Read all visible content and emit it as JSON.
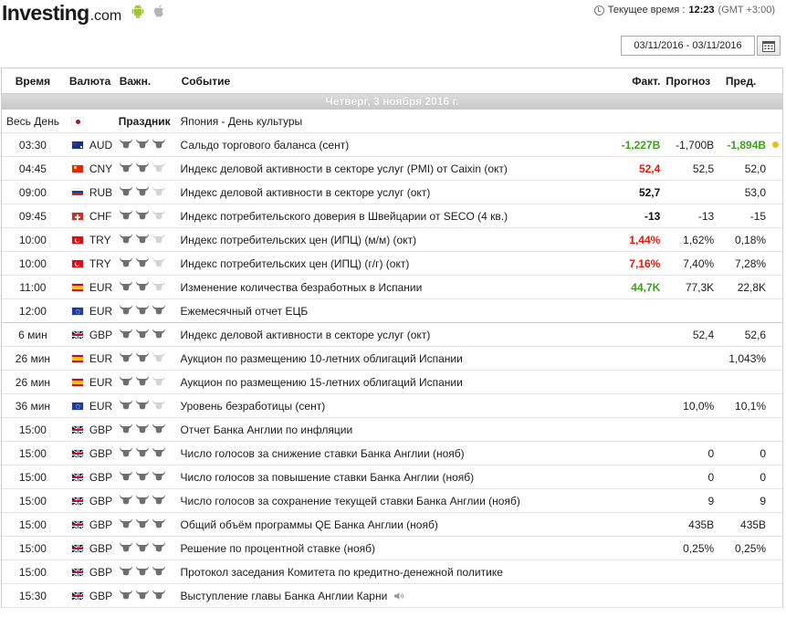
{
  "header": {
    "logo_text": "Investing",
    "logo_suffix": ".com",
    "current_time_label": "Текущее время :",
    "current_time": "12:23",
    "timezone": "(GMT +3:00)",
    "date_range": "03/11/2016 - 03/11/2016"
  },
  "table": {
    "columns": {
      "time": "Время",
      "currency": "Валюта",
      "importance": "Важн.",
      "event": "Событие",
      "actual": "Факт.",
      "forecast": "Прогноз",
      "previous": "Пред."
    },
    "day_header": "Четверг, 3 ноября 2016 г.",
    "holiday": {
      "time": "Весь День",
      "flag": "jp",
      "label": "Праздник",
      "event": "Япония - День культуры"
    },
    "rows": [
      {
        "time": "03:30",
        "flag": "au",
        "currency": "AUD",
        "stars": 3,
        "event": "Сальдо торгового баланса (сент)",
        "actual": "-1,227B",
        "actual_color": "green",
        "forecast": "-1,700B",
        "previous": "-1,894B",
        "previous_color": "green",
        "alert": true
      },
      {
        "time": "04:45",
        "flag": "cn",
        "currency": "CNY",
        "stars": 2,
        "event": "Индекс деловой активности в секторе услуг (PMI) от Caixin (окт)",
        "actual": "52,4",
        "actual_color": "red",
        "forecast": "52,5",
        "previous": "52,0"
      },
      {
        "time": "09:00",
        "flag": "ru",
        "currency": "RUB",
        "stars": 2,
        "event": "Индекс деловой активности в секторе услуг (окт)",
        "actual": "52,7",
        "actual_color": "black",
        "forecast": "",
        "previous": "53,0"
      },
      {
        "time": "09:45",
        "flag": "ch",
        "currency": "CHF",
        "stars": 2,
        "event": "Индекс потребительского доверия в Швейцарии от SECO (4 кв.)",
        "actual": "-13",
        "actual_color": "black",
        "forecast": "-13",
        "previous": "-15"
      },
      {
        "time": "10:00",
        "flag": "tr",
        "currency": "TRY",
        "stars": 2,
        "event": "Индекс потребительских цен (ИПЦ) (м/м) (окт)",
        "actual": "1,44%",
        "actual_color": "red",
        "forecast": "1,62%",
        "previous": "0,18%"
      },
      {
        "time": "10:00",
        "flag": "tr",
        "currency": "TRY",
        "stars": 2,
        "event": "Индекс потребительских цен (ИПЦ) (г/г) (окт)",
        "actual": "7,16%",
        "actual_color": "red",
        "forecast": "7,40%",
        "previous": "7,28%"
      },
      {
        "time": "11:00",
        "flag": "es",
        "currency": "EUR",
        "stars": 2,
        "event": "Изменение количества безработных в Испании",
        "actual": "44,7K",
        "actual_color": "green",
        "forecast": "77,3K",
        "previous": "22,8K"
      },
      {
        "time": "12:00",
        "flag": "eu",
        "currency": "EUR",
        "stars": 3,
        "event": "Ежемесячный отчет ЕЦБ",
        "actual": "",
        "forecast": "",
        "previous": "",
        "sep": true
      },
      {
        "time": "6 мин",
        "flag": "gb",
        "currency": "GBP",
        "stars": 3,
        "event": "Индекс деловой активности в секторе услуг (окт)",
        "actual": "",
        "forecast": "52,4",
        "previous": "52,6"
      },
      {
        "time": "26 мин",
        "flag": "es",
        "currency": "EUR",
        "stars": 2,
        "event": "Аукцион по размещению 10-летних облигаций Испании",
        "actual": "",
        "forecast": "",
        "previous": "1,043%"
      },
      {
        "time": "26 мин",
        "flag": "es",
        "currency": "EUR",
        "stars": 2,
        "event": "Аукцион по размещению 15-летних облигаций Испании",
        "actual": "",
        "forecast": "",
        "previous": ""
      },
      {
        "time": "36 мин",
        "flag": "eu",
        "currency": "EUR",
        "stars": 2,
        "event": "Уровень безработицы (сент)",
        "actual": "",
        "forecast": "10,0%",
        "previous": "10,1%"
      },
      {
        "time": "15:00",
        "flag": "gb",
        "currency": "GBP",
        "stars": 3,
        "event": "Отчет Банка Англии по инфляции",
        "actual": "",
        "forecast": "",
        "previous": ""
      },
      {
        "time": "15:00",
        "flag": "gb",
        "currency": "GBP",
        "stars": 3,
        "event": "Число голосов за снижение ставки Банка Англии (нояб)",
        "actual": "",
        "forecast": "0",
        "previous": "0"
      },
      {
        "time": "15:00",
        "flag": "gb",
        "currency": "GBP",
        "stars": 3,
        "event": "Число голосов за повышение ставки Банка Англии (нояб)",
        "actual": "",
        "forecast": "0",
        "previous": "0"
      },
      {
        "time": "15:00",
        "flag": "gb",
        "currency": "GBP",
        "stars": 3,
        "event": "Число голосов за сохранение текущей ставки Банка Англии (нояб)",
        "actual": "",
        "forecast": "9",
        "previous": "9"
      },
      {
        "time": "15:00",
        "flag": "gb",
        "currency": "GBP",
        "stars": 3,
        "event": "Общий объём программы QE Банка Англии (нояб)",
        "actual": "",
        "forecast": "435B",
        "previous": "435B"
      },
      {
        "time": "15:00",
        "flag": "gb",
        "currency": "GBP",
        "stars": 3,
        "event": "Решение по процентной ставке (нояб)",
        "actual": "",
        "forecast": "0,25%",
        "previous": "0,25%"
      },
      {
        "time": "15:00",
        "flag": "gb",
        "currency": "GBP",
        "stars": 3,
        "event": "Протокол заседания Комитета по кредитно-денежной политике",
        "actual": "",
        "forecast": "",
        "previous": ""
      },
      {
        "time": "15:30",
        "flag": "gb",
        "currency": "GBP",
        "stars": 3,
        "event": "Выступление главы Банка Англии Карни",
        "actual": "",
        "forecast": "",
        "previous": "",
        "speech": true
      }
    ]
  },
  "icons": {
    "android": "android-icon",
    "apple": "apple-icon",
    "clock": "clock-icon",
    "calendar": "calendar-icon",
    "importance": "bull-icon",
    "speech": "speaker-icon",
    "alert": "alert-dot-icon"
  },
  "colors": {
    "positive": "#3ca01e",
    "negative": "#e8180c",
    "bull_active": "#6f6f6f",
    "bull_inactive": "#d4d4d4",
    "alert": "#e8c21b"
  }
}
